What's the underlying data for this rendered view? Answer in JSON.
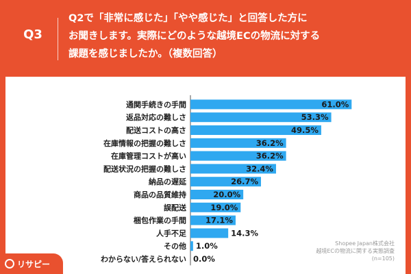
{
  "header": {
    "q_number": "Q3",
    "question_lines": [
      "Q2で「非常に感じた」「やや感じた」と回答した方に",
      "お聞きします。実際にどのような越境ECの物流に対する",
      "課題を感じましたか。（複数回答）"
    ]
  },
  "source": {
    "line1": "Shopee Japan株式会社",
    "line2": "越境ECの物流に関する実態調査",
    "line3": "(n=105)"
  },
  "logo": {
    "text": "リサピー"
  },
  "colors": {
    "header_bg": "#e9512f",
    "bar": "#2fa8f0",
    "axis": "#555555"
  },
  "chart_data": {
    "type": "bar",
    "orientation": "horizontal",
    "categories": [
      "通関手続きの手間",
      "返品対応の難しさ",
      "配送コストの高さ",
      "在庫情報の把握の難しさ",
      "在庫管理コストが高い",
      "配送状況の把握の難しさ",
      "納品の遅延",
      "商品の品質維持",
      "誤配送",
      "梱包作業の手間",
      "人手不足",
      "その他",
      "わからない/答えられない"
    ],
    "values": [
      61.0,
      53.3,
      49.5,
      36.2,
      36.2,
      32.4,
      26.7,
      20.0,
      19.0,
      17.1,
      14.3,
      1.0,
      0.0
    ],
    "value_labels": [
      "61.0%",
      "53.3%",
      "49.5%",
      "36.2%",
      "36.2%",
      "32.4%",
      "26.7%",
      "20.0%",
      "19.0%",
      "17.1%",
      "14.3%",
      "1.0%",
      "0.0%"
    ],
    "unit": "%",
    "xlim": [
      0,
      70
    ]
  }
}
